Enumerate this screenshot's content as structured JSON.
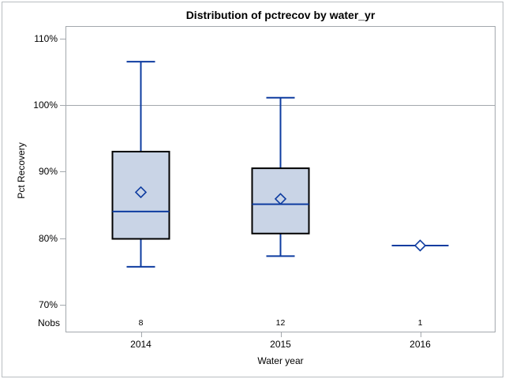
{
  "chart_data": {
    "type": "box",
    "title": "Distribution of pctrecov by water_yr",
    "xlabel": "Water year",
    "ylabel": "Pct Recovery",
    "nobs_label": "Nobs",
    "y_ticks": [
      70,
      80,
      90,
      100,
      110
    ],
    "y_tick_labels": [
      "70%",
      "80%",
      "90%",
      "100%",
      "110%"
    ],
    "ylim": [
      65.9,
      111.8
    ],
    "reference_line": 100,
    "grid": "off",
    "legend": "none",
    "categories": [
      "2014",
      "2015",
      "2016"
    ],
    "nobs": [
      "8",
      "12",
      "1"
    ],
    "series": [
      {
        "category": "2014",
        "nobs": 8,
        "whisker_low": 75.7,
        "q1": 79.9,
        "median": 84.0,
        "q3": 93.0,
        "whisker_high": 106.5,
        "mean": 86.9
      },
      {
        "category": "2015",
        "nobs": 12,
        "whisker_low": 77.3,
        "q1": 80.7,
        "median": 85.1,
        "q3": 90.5,
        "whisker_high": 101.1,
        "mean": 85.9
      },
      {
        "category": "2016",
        "nobs": 1,
        "single_value": 78.9,
        "mean": 78.9
      }
    ],
    "colors": {
      "box_fill": "#c9d4e6",
      "box_border": "#000000",
      "line_blue": "#0e3ca0",
      "axis_gray": "#a3a8ad",
      "text": "#000000",
      "outer_border": "#b9bdc1"
    }
  }
}
